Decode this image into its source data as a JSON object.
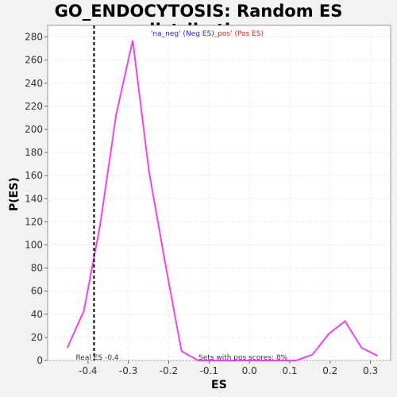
{
  "chart_data": {
    "type": "line",
    "title": "GO_ENDOCYTOSIS: Random ES distribution",
    "xlabel": "ES",
    "ylabel": "P(ES)",
    "xlim": [
      -0.5,
      0.35
    ],
    "ylim": [
      0,
      290
    ],
    "x_ticks": [
      -0.4,
      -0.3,
      -0.2,
      -0.1,
      0.0,
      0.1,
      0.2,
      0.3
    ],
    "x_tick_labels": [
      "-0.4",
      "-0.3",
      "-0.2",
      "-0.1",
      "0.0",
      "0.1",
      "0.2",
      "0.3"
    ],
    "y_ticks": [
      0,
      20,
      40,
      60,
      80,
      100,
      120,
      140,
      160,
      180,
      200,
      220,
      240,
      260,
      280
    ],
    "y_tick_labels": [
      "0",
      "20",
      "40",
      "60",
      "80",
      "100",
      "120",
      "140",
      "160",
      "180",
      "200",
      "220",
      "240",
      "260",
      "280"
    ],
    "grid": true,
    "legend": {
      "position": "top",
      "entries": [
        {
          "text": "'na_neg' (Neg ES)",
          "color": "#2222dd"
        },
        {
          "text": "_pos' (Pos ES)",
          "color": "#dd2222"
        }
      ]
    },
    "series": [
      {
        "color": "#ee44ee",
        "x": [
          -0.451,
          -0.41,
          -0.37,
          -0.33,
          -0.289,
          -0.249,
          -0.208,
          -0.168,
          -0.127,
          -0.087,
          -0.046,
          -0.006,
          0.035,
          0.075,
          0.116,
          0.156,
          0.197,
          0.237,
          0.278,
          0.318
        ],
        "y": [
          11,
          43,
          117,
          213,
          277,
          164,
          83,
          8,
          0,
          0,
          0,
          0,
          0,
          0,
          0,
          5,
          23,
          34,
          11,
          4
        ]
      }
    ],
    "real_es": {
      "value": -0.385,
      "label": "Real ES -0.4"
    },
    "annotation": "Sets with pos scores: 8%",
    "colors": {
      "plot_background": "#ffffff",
      "page_background": "#f2f2f2",
      "grid": "#e8e8e8",
      "real_es_line": "#000000"
    }
  }
}
